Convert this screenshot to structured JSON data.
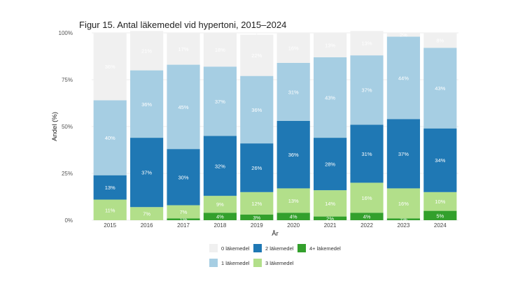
{
  "chart_data": {
    "type": "bar",
    "stacked": true,
    "title": "Figur 15. Antal läkemedel vid hypertoni, 2015–2024",
    "xlabel": "År",
    "ylabel": "Andel (%)",
    "ylim": [
      0,
      100
    ],
    "yticks": [
      "0%",
      "25%",
      "50%",
      "75%",
      "100%"
    ],
    "grid": true,
    "legend_position": "bottom",
    "categories": [
      "2015",
      "2016",
      "2017",
      "2018",
      "2019",
      "2020",
      "2021",
      "2022",
      "2023",
      "2024"
    ],
    "series": [
      {
        "name": "4+ läkemedel",
        "color": "#33a02c",
        "text_color": "#ffffff",
        "values": [
          0,
          0,
          1,
          4,
          3,
          4,
          2,
          4,
          1,
          5
        ],
        "labels": [
          "",
          "",
          "1%",
          "4%",
          "3%",
          "4%",
          "2%",
          "4%",
          "1%",
          "5%"
        ]
      },
      {
        "name": "3 läkemedel",
        "color": "#b2df8a",
        "text_color": "#ffffff",
        "values": [
          11,
          7,
          7,
          9,
          12,
          13,
          14,
          16,
          16,
          10
        ],
        "labels": [
          "11%",
          "7%",
          "7%",
          "9%",
          "12%",
          "13%",
          "14%",
          "16%",
          "16%",
          "10%"
        ]
      },
      {
        "name": "2 läkemedel",
        "color": "#1f78b4",
        "text_color": "#ffffff",
        "values": [
          13,
          37,
          30,
          32,
          26,
          36,
          28,
          31,
          37,
          34
        ],
        "labels": [
          "13%",
          "37%",
          "30%",
          "32%",
          "26%",
          "36%",
          "28%",
          "31%",
          "37%",
          "34%"
        ]
      },
      {
        "name": "1 läkemedel",
        "color": "#a6cee3",
        "text_color": "#ffffff",
        "values": [
          40,
          36,
          45,
          37,
          36,
          31,
          43,
          37,
          44,
          43
        ],
        "labels": [
          "40%",
          "36%",
          "45%",
          "37%",
          "36%",
          "31%",
          "43%",
          "37%",
          "44%",
          "43%"
        ]
      },
      {
        "name": "0 läkemedel",
        "color": "#f0f0f0",
        "text_color": "#ffffff",
        "values": [
          36,
          21,
          17,
          18,
          22,
          16,
          13,
          13,
          2,
          8
        ],
        "labels": [
          "36%",
          "21%",
          "17%",
          "18%",
          "22%",
          "16%",
          "13%",
          "13%",
          "2%",
          "8%"
        ]
      }
    ],
    "legend": [
      {
        "name": "0 läkemedel",
        "color": "#f0f0f0"
      },
      {
        "name": "2 läkemedel",
        "color": "#1f78b4"
      },
      {
        "name": "4+ läkemedel",
        "color": "#33a02c"
      },
      {
        "name": "1 läkemedel",
        "color": "#a6cee3"
      },
      {
        "name": "3 läkemedel",
        "color": "#b2df8a"
      }
    ]
  }
}
